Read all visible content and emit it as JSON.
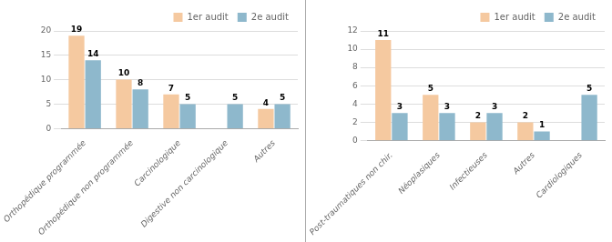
{
  "chart_data": [
    {
      "type": "bar",
      "categories": [
        "Orthopédique programmée",
        "Orthopédique non programmée",
        "Carcinologique",
        "Digestive non carcinologique",
        "Autres"
      ],
      "series": [
        {
          "name": "1er audit",
          "color": "#F5C9A0",
          "values": [
            19,
            10,
            7,
            0,
            4
          ],
          "value_labels": [
            "19",
            "10",
            "7",
            null,
            "4"
          ]
        },
        {
          "name": "2e audit",
          "color": "#8EB8CC",
          "values": [
            14,
            8,
            5,
            5,
            5
          ],
          "value_labels": [
            "14",
            "8",
            "5",
            "5",
            "5"
          ]
        }
      ],
      "ylim": [
        0,
        20
      ],
      "yticks": [
        0,
        5,
        10,
        15,
        20
      ],
      "grid": true,
      "legend": "upper right",
      "data_labels": true
    },
    {
      "type": "bar",
      "categories": [
        "Post-traumatiques non chir.",
        "Néoplasiques",
        "Infectieuses",
        "Autres",
        "Cardiologiques"
      ],
      "series": [
        {
          "name": "1er audit",
          "color": "#F5C9A0",
          "values": [
            11,
            5,
            2,
            2,
            0
          ],
          "value_labels": [
            "11",
            "5",
            "2",
            "2",
            null
          ]
        },
        {
          "name": "2e audit",
          "color": "#8EB8CC",
          "values": [
            3,
            3,
            3,
            1,
            5
          ],
          "value_labels": [
            "3",
            "3",
            "3",
            "1",
            "5"
          ]
        }
      ],
      "ylim": [
        0,
        12
      ],
      "yticks": [
        0,
        2,
        4,
        6,
        8,
        10,
        12
      ],
      "grid": true,
      "legend": "upper right",
      "data_labels": true
    }
  ]
}
